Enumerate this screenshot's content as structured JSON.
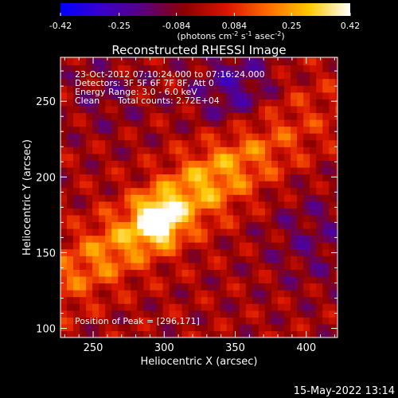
{
  "chart_data": {
    "type": "heatmap",
    "title": "Reconstructed RHESSI Image",
    "xlabel": "Heliocentric X (arcsec)",
    "ylabel": "Heliocentric Y (arcsec)",
    "xlim": [
      227,
      422
    ],
    "ylim": [
      94,
      279
    ],
    "xticks": [
      250,
      300,
      350,
      400
    ],
    "yticks": [
      100,
      150,
      200,
      250
    ],
    "colorbar": {
      "label_main": "(photons cm",
      "sup1": "-2",
      "mid1": " s",
      "sup2": "-1",
      "mid2": " asec",
      "sup3": "-2",
      "end": ")",
      "ticks": [
        "-0.42",
        "-0.25",
        "-0.084",
        "0.084",
        "0.25",
        "0.42"
      ],
      "range": [
        -0.42,
        0.42
      ],
      "stops": [
        "#0000ff",
        "#3a00c8",
        "#5a007e",
        "#8c0000",
        "#d81400",
        "#ff6a00",
        "#ffc800",
        "#ffffff"
      ]
    },
    "info_lines": [
      "23-Oct-2012 07:10:24.000 to 07:16:24.000",
      "Detectors: 3F 5F 6F 7F 8F, Att 0",
      "Energy Range: 3.0 - 6.0 keV"
    ],
    "clean_label": "Clean",
    "counts_label": "Total counts: 2.72E+04",
    "peak_text": "Position of Peak = [296,171]",
    "peak": [
      296,
      171
    ],
    "peak_value": 0.42
  },
  "footer": {
    "timestamp": "15-May-2022 13:14"
  }
}
